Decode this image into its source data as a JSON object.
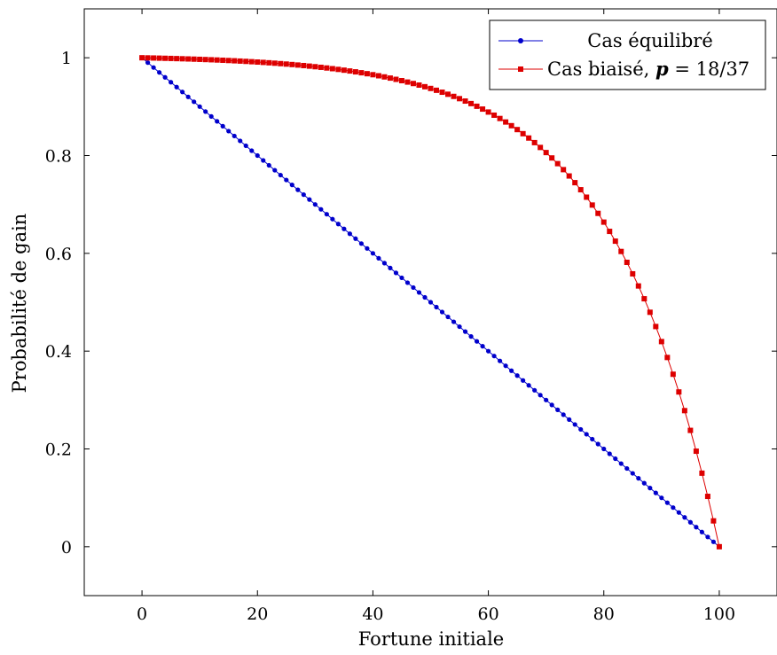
{
  "chart_data": {
    "type": "line",
    "title": "",
    "xlabel": "Fortune initiale",
    "ylabel": "Probabilité de gain",
    "xlim": [
      -10,
      110
    ],
    "ylim": [
      -0.1,
      1.1
    ],
    "xticks": [
      0,
      20,
      40,
      60,
      80,
      100
    ],
    "yticks": [
      0,
      0.2,
      0.4,
      0.6,
      0.8,
      1
    ],
    "xtick_labels": [
      "0",
      "20",
      "40",
      "60",
      "80",
      "100"
    ],
    "ytick_labels": [
      "0",
      "0.2",
      "0.4",
      "0.6",
      "0.8",
      "1"
    ],
    "grid": false,
    "legend_position": "top-right",
    "series": [
      {
        "name": "Cas équilibré",
        "color": "#0000cc",
        "marker": "circle",
        "formula": "fair",
        "x_range": [
          0,
          100,
          1
        ]
      },
      {
        "name": "Cas biaisé, p = 18/37",
        "name_parts": {
          "text": "Cas biaisé, ",
          "p": "p",
          "eq": " = ",
          "frac": "18/37"
        },
        "color": "#dd0000",
        "marker": "square",
        "formula": "biased",
        "p": 0.4864864864864865,
        "x_range": [
          0,
          100,
          1
        ]
      }
    ]
  }
}
